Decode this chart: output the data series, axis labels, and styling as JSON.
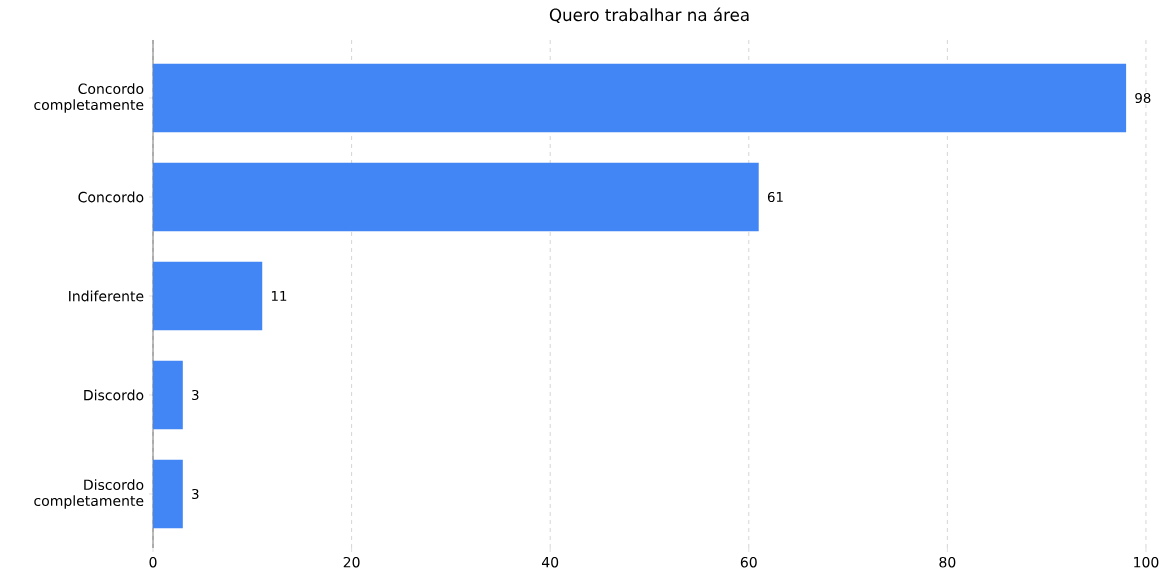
{
  "chart_data": {
    "type": "bar",
    "orientation": "horizontal",
    "title": "Quero trabalhar na área",
    "categories": [
      "Concordo completamente",
      "Concordo",
      "Indiferente",
      "Discordo",
      "Discordo completamente"
    ],
    "values": [
      98,
      61,
      11,
      3,
      3
    ],
    "color": "#4285f4",
    "xlim": [
      0,
      100
    ],
    "xticks": [
      0,
      20,
      40,
      60,
      80,
      100
    ],
    "grid": "x",
    "data_labels": true
  }
}
